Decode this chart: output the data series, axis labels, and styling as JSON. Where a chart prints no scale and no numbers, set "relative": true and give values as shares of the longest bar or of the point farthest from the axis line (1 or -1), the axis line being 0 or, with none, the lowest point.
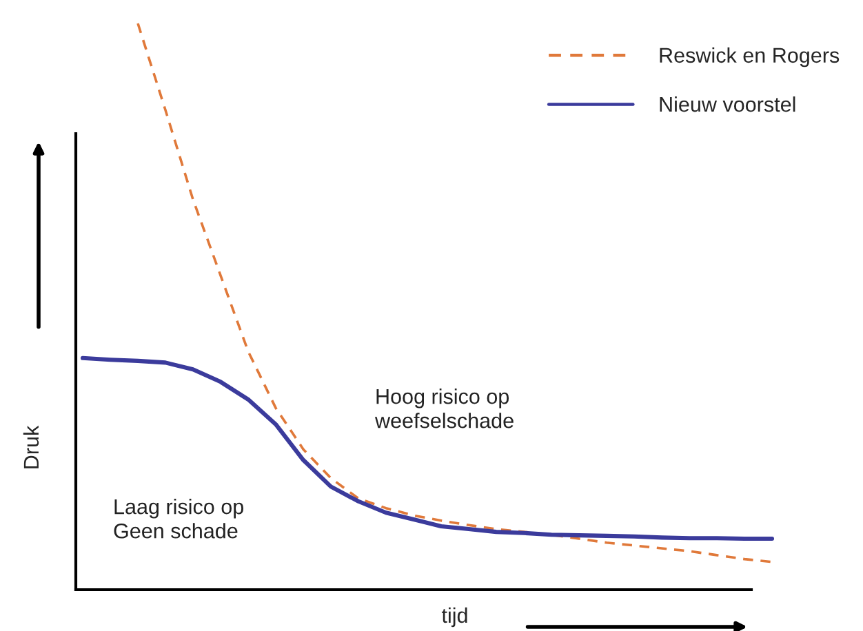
{
  "chart_data": {
    "type": "line",
    "relative": true,
    "xlabel": "tijd",
    "ylabel": "Druk",
    "legend": "top right",
    "line_style": "solid",
    "marker": "none",
    "categories": [
      null,
      null,
      null,
      null,
      null,
      null,
      null,
      null,
      null,
      null,
      null,
      null,
      null,
      null,
      null,
      null,
      null,
      null,
      null,
      null,
      null,
      null,
      null,
      null,
      null,
      null
    ],
    "series": [
      {
        "name": "Reswick en Rogers",
        "color": "#e0793a",
        "line_style": "dashed",
        "values": [
          null,
          null,
          1.0,
          0.847,
          0.689,
          0.555,
          0.421,
          0.321,
          0.248,
          0.197,
          0.161,
          0.144,
          0.131,
          0.122,
          0.114,
          0.107,
          0.102,
          0.097,
          0.09,
          0.083,
          0.078,
          0.073,
          0.068,
          0.061,
          0.054,
          0.049
        ]
      },
      {
        "name": "Nieuw voorstel",
        "color": "#3b3b9c",
        "values": [
          0.409,
          0.406,
          0.404,
          0.401,
          0.389,
          0.367,
          0.336,
          0.292,
          0.229,
          0.182,
          0.156,
          0.136,
          0.124,
          0.112,
          0.107,
          0.102,
          0.1,
          0.097,
          0.096,
          0.095,
          0.094,
          0.092,
          0.091,
          0.091,
          0.09,
          0.09
        ]
      }
    ],
    "annotations": [
      "Hoog risico op\nweefselschade",
      "Laag risico op\nGeen schade"
    ]
  }
}
